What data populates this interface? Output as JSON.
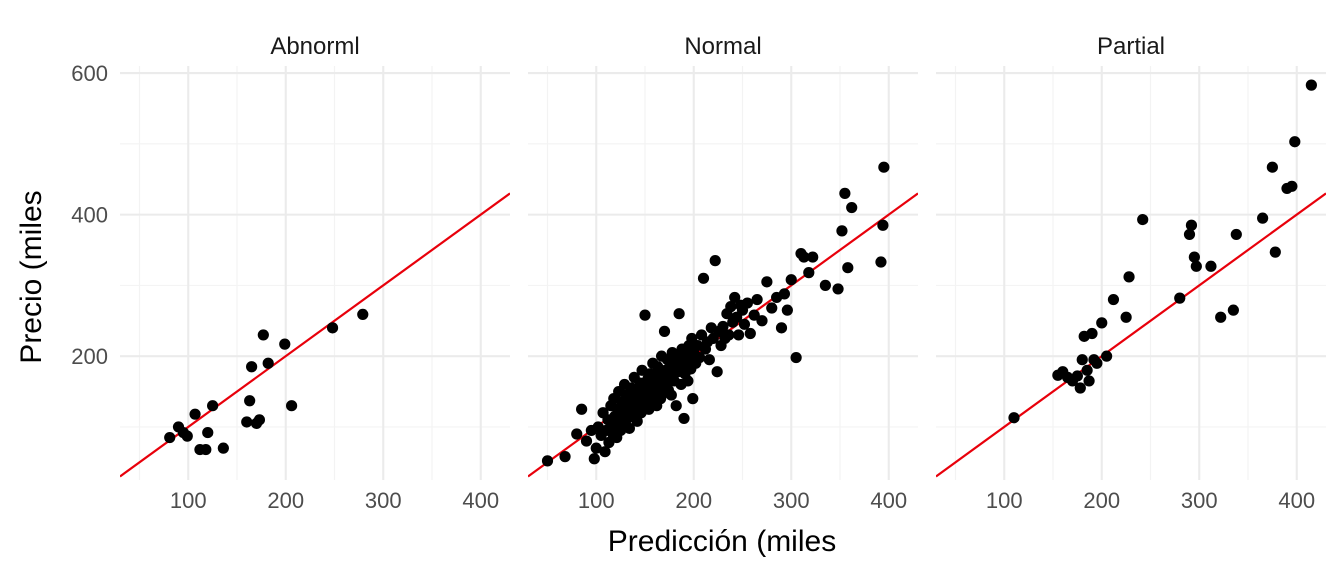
{
  "chart_data": {
    "type": "scatter",
    "xlabel": "Predicción (miles",
    "ylabel": "Precio (miles",
    "xlim": [
      30,
      430
    ],
    "ylim": [
      25,
      610
    ],
    "x_ticks": [
      100,
      200,
      300,
      400
    ],
    "y_ticks": [
      200,
      400,
      600
    ],
    "grid": true,
    "reference_line": {
      "slope": 1,
      "intercept": 0,
      "color": "#e8000b"
    },
    "point_color": "#000000",
    "panels": [
      {
        "title": "Abnorml",
        "points": [
          [
            81,
            85
          ],
          [
            90,
            100
          ],
          [
            95,
            92
          ],
          [
            99,
            87
          ],
          [
            107,
            118
          ],
          [
            112,
            68
          ],
          [
            118,
            68
          ],
          [
            120,
            92
          ],
          [
            125,
            130
          ],
          [
            136,
            70
          ],
          [
            160,
            107
          ],
          [
            163,
            137
          ],
          [
            165,
            185
          ],
          [
            170,
            105
          ],
          [
            173,
            110
          ],
          [
            177,
            230
          ],
          [
            182,
            190
          ],
          [
            199,
            217
          ],
          [
            206,
            130
          ],
          [
            248,
            240
          ],
          [
            279,
            259
          ]
        ]
      },
      {
        "title": "Normal",
        "points": [
          [
            50,
            52
          ],
          [
            68,
            58
          ],
          [
            80,
            90
          ],
          [
            85,
            125
          ],
          [
            90,
            80
          ],
          [
            95,
            95
          ],
          [
            98,
            55
          ],
          [
            100,
            70
          ],
          [
            102,
            100
          ],
          [
            105,
            88
          ],
          [
            107,
            120
          ],
          [
            109,
            65
          ],
          [
            110,
            95
          ],
          [
            112,
            110
          ],
          [
            113,
            78
          ],
          [
            115,
            130
          ],
          [
            116,
            105
          ],
          [
            117,
            90
          ],
          [
            118,
            140
          ],
          [
            119,
            115
          ],
          [
            120,
            100
          ],
          [
            121,
            85
          ],
          [
            122,
            125
          ],
          [
            123,
            150
          ],
          [
            124,
            110
          ],
          [
            125,
            95
          ],
          [
            126,
            135
          ],
          [
            127,
            118
          ],
          [
            128,
            105
          ],
          [
            129,
            160
          ],
          [
            130,
            128
          ],
          [
            131,
            145
          ],
          [
            132,
            112
          ],
          [
            133,
            138
          ],
          [
            134,
            98
          ],
          [
            135,
            122
          ],
          [
            136,
            155
          ],
          [
            137,
            130
          ],
          [
            138,
            115
          ],
          [
            139,
            170
          ],
          [
            140,
            142
          ],
          [
            141,
            125
          ],
          [
            142,
            108
          ],
          [
            143,
            150
          ],
          [
            144,
            135
          ],
          [
            145,
            162
          ],
          [
            146,
            120
          ],
          [
            147,
            180
          ],
          [
            148,
            145
          ],
          [
            149,
            132
          ],
          [
            150,
            258
          ],
          [
            151,
            155
          ],
          [
            152,
            140
          ],
          [
            153,
            168
          ],
          [
            154,
            125
          ],
          [
            155,
            175
          ],
          [
            156,
            150
          ],
          [
            157,
            138
          ],
          [
            158,
            190
          ],
          [
            159,
            160
          ],
          [
            160,
            145
          ],
          [
            161,
            172
          ],
          [
            162,
            130
          ],
          [
            163,
            185
          ],
          [
            164,
            155
          ],
          [
            165,
            165
          ],
          [
            166,
            140
          ],
          [
            167,
            200
          ],
          [
            168,
            175
          ],
          [
            169,
            148
          ],
          [
            170,
            235
          ],
          [
            171,
            180
          ],
          [
            172,
            160
          ],
          [
            173,
            195
          ],
          [
            174,
            152
          ],
          [
            175,
            170
          ],
          [
            176,
            185
          ],
          [
            177,
            145
          ],
          [
            178,
            205
          ],
          [
            179,
            175
          ],
          [
            180,
            165
          ],
          [
            181,
            190
          ],
          [
            182,
            130
          ],
          [
            183,
            200
          ],
          [
            184,
            178
          ],
          [
            185,
            260
          ],
          [
            186,
            185
          ],
          [
            187,
            160
          ],
          [
            188,
            210
          ],
          [
            189,
            195
          ],
          [
            190,
            112
          ],
          [
            191,
            175
          ],
          [
            192,
            205
          ],
          [
            193,
            188
          ],
          [
            194,
            165
          ],
          [
            195,
            215
          ],
          [
            196,
            200
          ],
          [
            197,
            182
          ],
          [
            198,
            225
          ],
          [
            199,
            140
          ],
          [
            200,
            205
          ],
          [
            202,
            190
          ],
          [
            204,
            215
          ],
          [
            206,
            198
          ],
          [
            208,
            230
          ],
          [
            210,
            310
          ],
          [
            212,
            210
          ],
          [
            214,
            220
          ],
          [
            216,
            195
          ],
          [
            218,
            240
          ],
          [
            220,
            225
          ],
          [
            222,
            335
          ],
          [
            224,
            178
          ],
          [
            226,
            235
          ],
          [
            228,
            215
          ],
          [
            230,
            242
          ],
          [
            232,
            225
          ],
          [
            234,
            260
          ],
          [
            236,
            230
          ],
          [
            238,
            270
          ],
          [
            240,
            248
          ],
          [
            242,
            283
          ],
          [
            244,
            255
          ],
          [
            246,
            230
          ],
          [
            248,
            272
          ],
          [
            250,
            265
          ],
          [
            252,
            245
          ],
          [
            255,
            275
          ],
          [
            258,
            232
          ],
          [
            262,
            258
          ],
          [
            265,
            280
          ],
          [
            270,
            250
          ],
          [
            275,
            305
          ],
          [
            280,
            268
          ],
          [
            285,
            283
          ],
          [
            290,
            240
          ],
          [
            293,
            288
          ],
          [
            296,
            265
          ],
          [
            300,
            308
          ],
          [
            305,
            198
          ],
          [
            310,
            345
          ],
          [
            313,
            340
          ],
          [
            318,
            318
          ],
          [
            322,
            340
          ],
          [
            335,
            300
          ],
          [
            348,
            295
          ],
          [
            352,
            377
          ],
          [
            355,
            430
          ],
          [
            358,
            325
          ],
          [
            362,
            410
          ],
          [
            392,
            333
          ],
          [
            394,
            385
          ],
          [
            395,
            467
          ]
        ]
      },
      {
        "title": "Partial",
        "points": [
          [
            110,
            113
          ],
          [
            155,
            173
          ],
          [
            160,
            178
          ],
          [
            165,
            170
          ],
          [
            170,
            165
          ],
          [
            175,
            172
          ],
          [
            178,
            155
          ],
          [
            180,
            195
          ],
          [
            182,
            228
          ],
          [
            185,
            180
          ],
          [
            187,
            165
          ],
          [
            190,
            232
          ],
          [
            192,
            195
          ],
          [
            195,
            190
          ],
          [
            200,
            247
          ],
          [
            205,
            200
          ],
          [
            212,
            280
          ],
          [
            225,
            255
          ],
          [
            228,
            312
          ],
          [
            242,
            393
          ],
          [
            280,
            282
          ],
          [
            290,
            372
          ],
          [
            292,
            385
          ],
          [
            295,
            340
          ],
          [
            297,
            327
          ],
          [
            312,
            327
          ],
          [
            322,
            255
          ],
          [
            335,
            265
          ],
          [
            338,
            372
          ],
          [
            365,
            395
          ],
          [
            375,
            467
          ],
          [
            378,
            347
          ],
          [
            390,
            437
          ],
          [
            395,
            440
          ],
          [
            398,
            503
          ],
          [
            415,
            583
          ]
        ]
      }
    ]
  }
}
